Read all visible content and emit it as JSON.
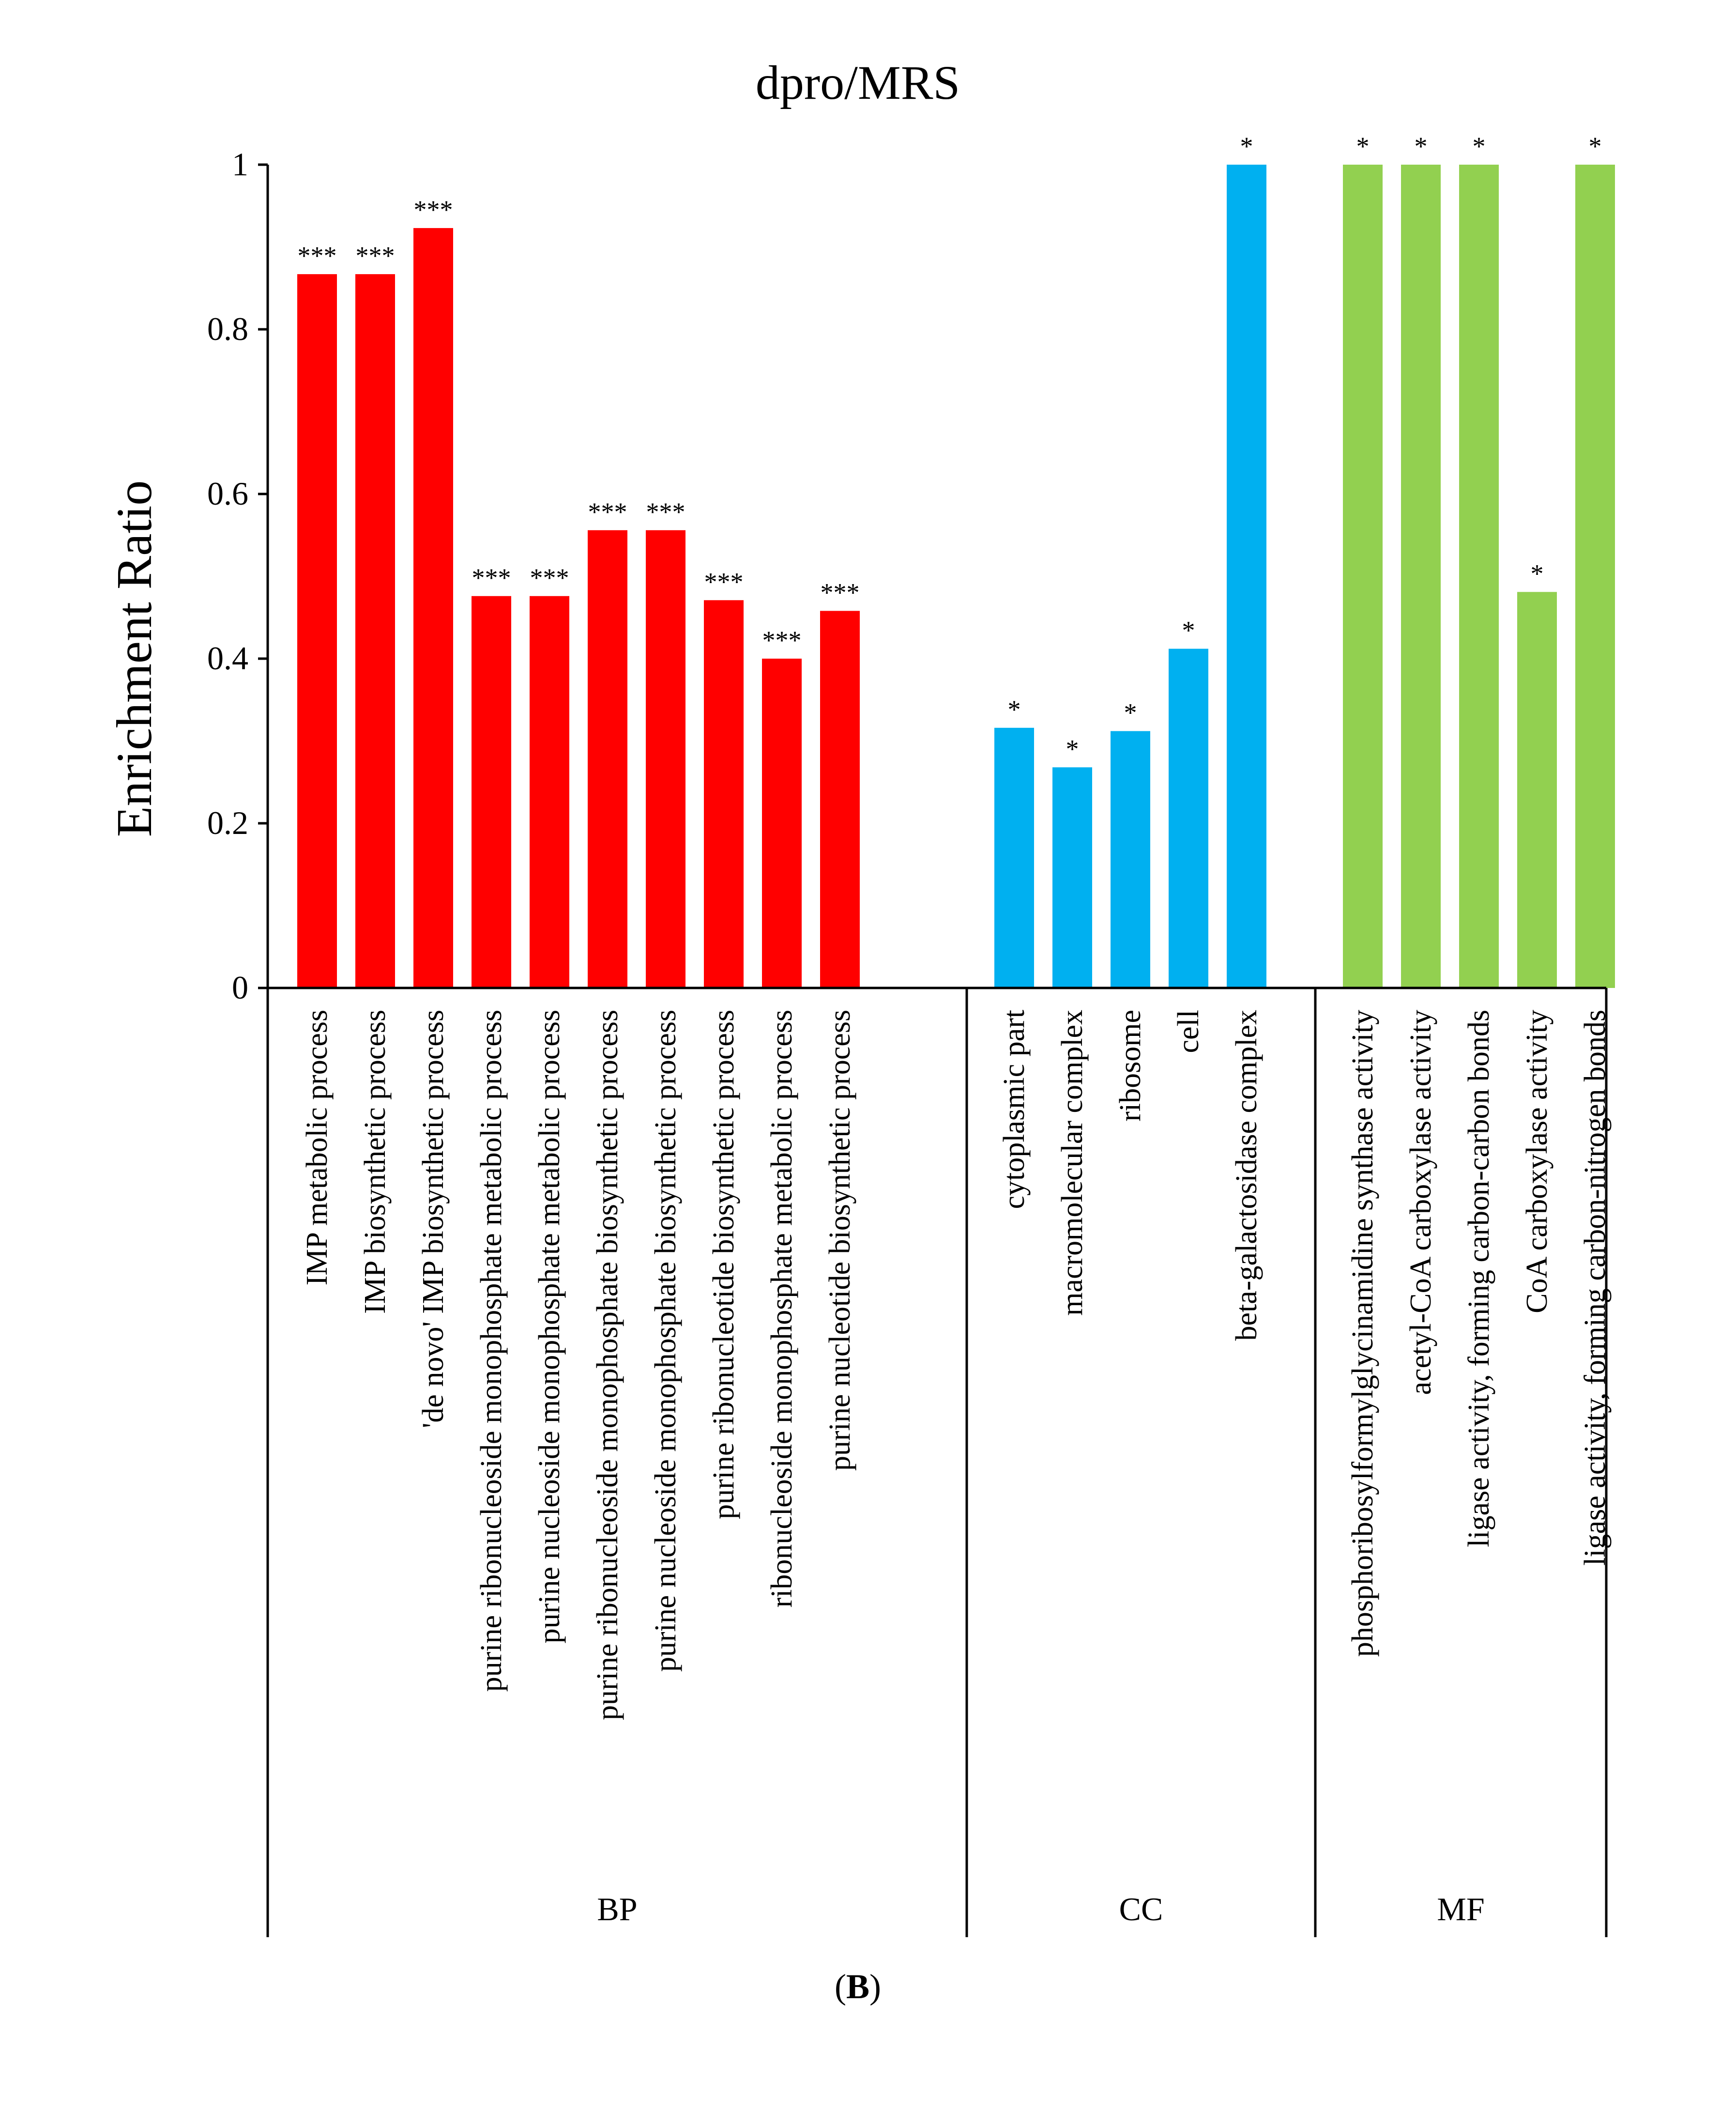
{
  "chart_data": {
    "type": "bar",
    "title": "dpro/MRS",
    "xlabel": "",
    "ylabel": "Enrichment Ratio",
    "ylim": [
      0,
      1
    ],
    "yticks": [
      "0",
      "0.2",
      "0.4",
      "0.6",
      "0.8",
      "1"
    ],
    "ytick_values": [
      0,
      0.2,
      0.4,
      0.6,
      0.8,
      1
    ],
    "grid": false,
    "legend": "none",
    "panel_label_open": "(",
    "panel_label_letter": "B",
    "panel_label_close": ")",
    "groups": [
      {
        "name": "BP",
        "color": "#ff0000",
        "categories": [
          "IMP metabolic process",
          "IMP biosynthetic process",
          "'de novo' IMP biosynthetic process",
          "purine ribonucleoside monophosphate metabolic process",
          "purine nucleoside monophosphate metabolic process",
          "purine ribonucleoside monophosphate biosynthetic process",
          "purine nucleoside monophosphate biosynthetic process",
          "purine ribonucleotide biosynthetic process",
          "ribonucleoside monophosphate metabolic process",
          "purine nucleotide biosynthetic process"
        ],
        "values": [
          0.867,
          0.867,
          0.923,
          0.476,
          0.476,
          0.556,
          0.556,
          0.471,
          0.4,
          0.458
        ],
        "significance": [
          "***",
          "***",
          "***",
          "***",
          "***",
          "***",
          "***",
          "***",
          "***",
          "***"
        ]
      },
      {
        "name": "CC",
        "color": "#00b0f0",
        "categories": [
          "cytoplasmic part",
          "macromolecular complex",
          "ribosome",
          "cell",
          "beta-galactosidase complex"
        ],
        "values": [
          0.316,
          0.268,
          0.312,
          0.412,
          1.0
        ],
        "significance": [
          "*",
          "*",
          "*",
          "*",
          "*"
        ]
      },
      {
        "name": "MF",
        "color": "#92d050",
        "categories": [
          "phosphoribosylformylglycinamidine synthase activity",
          "acetyl-CoA carboxylase activity",
          "ligase activity, forming carbon-carbon bonds",
          "CoA carboxylase activity",
          "ligase activity, forming carbon-nitrogen bonds"
        ],
        "values": [
          1.0,
          1.0,
          1.0,
          0.481,
          1.0
        ],
        "significance": [
          "*",
          "*",
          "*",
          "*",
          "*"
        ]
      }
    ]
  }
}
